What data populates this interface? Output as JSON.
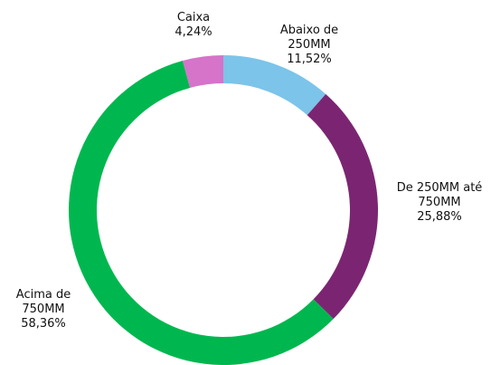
{
  "chart_data": {
    "type": "donut",
    "categories": [
      "Abaixo de 250MM",
      "De 250MM até 750MM",
      "Acima de 750MM",
      "Caixa"
    ],
    "values": [
      11.52,
      25.88,
      58.36,
      4.24
    ],
    "value_labels": [
      "11,52%",
      "25,88%",
      "58,36%",
      "4,24%"
    ],
    "colors": [
      "#7cc4e9",
      "#7b2572",
      "#00b74f",
      "#d574c8"
    ]
  }
}
